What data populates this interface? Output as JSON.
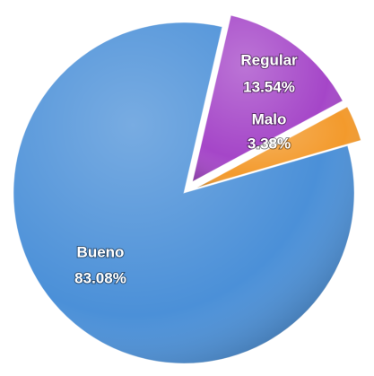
{
  "chart_data": {
    "type": "pie",
    "categories": [
      "Regular",
      "Malo",
      "Bueno"
    ],
    "values": [
      13.54,
      3.38,
      83.08
    ],
    "value_labels": [
      "13.54%",
      "3.38%",
      "83.08%"
    ],
    "colors": [
      "#a546c8",
      "#f39a2c",
      "#4b90d8"
    ],
    "exploded": [
      true,
      true,
      false
    ]
  }
}
